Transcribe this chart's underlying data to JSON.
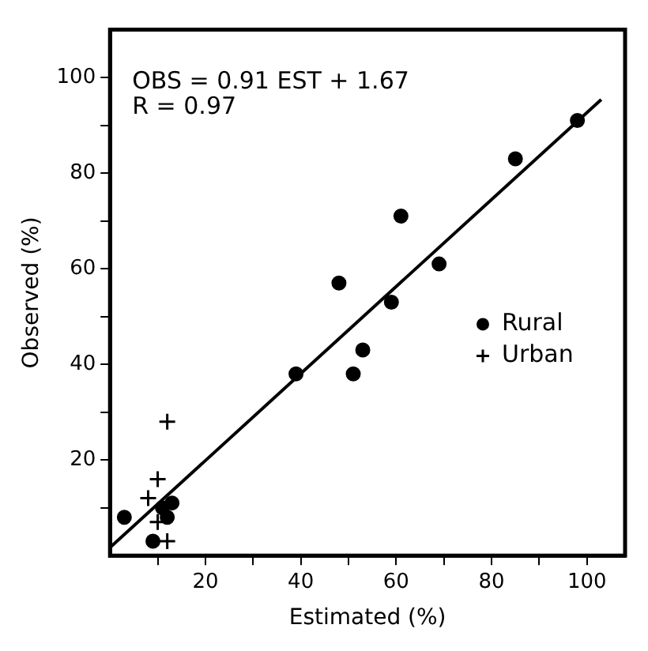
{
  "chart_data": {
    "type": "scatter",
    "xlabel": "Estimated (%)",
    "ylabel": "Observed (%)",
    "annotations": [
      "OBS = 0.91 EST + 1.67",
      "R = 0.97"
    ],
    "xlim": [
      0,
      108
    ],
    "ylim": [
      0,
      110
    ],
    "xticks": [
      {
        "value": 10,
        "label": null
      },
      20,
      {
        "value": 30,
        "label": null
      },
      40,
      {
        "value": 50,
        "label": null
      },
      60,
      {
        "value": 70,
        "label": null
      },
      80,
      {
        "value": 90,
        "label": null
      },
      100
    ],
    "yticks": [
      {
        "value": 10,
        "label": null
      },
      20,
      {
        "value": 30,
        "label": null
      },
      40,
      {
        "value": 50,
        "label": null
      },
      60,
      {
        "value": 70,
        "label": null
      },
      80,
      {
        "value": 90,
        "label": null
      },
      100
    ],
    "grid": false,
    "legend": "right",
    "series": [
      {
        "name": "Rural",
        "color": "#000000",
        "marker": "circle",
        "x": [
          98,
          85,
          61,
          69,
          48,
          59,
          39,
          53,
          51,
          3,
          9,
          11,
          13,
          12
        ],
        "values": [
          91,
          83,
          71,
          61,
          57,
          53,
          38,
          43,
          38,
          8,
          3,
          10,
          11,
          8
        ]
      },
      {
        "name": "Urban",
        "color": "#000000",
        "marker": "cross",
        "x": [
          12,
          10,
          8,
          10,
          12
        ],
        "values": [
          28,
          16,
          12,
          7,
          3
        ]
      },
      {
        "type": "line",
        "color": "#000000",
        "x": [
          0,
          103
        ],
        "values": [
          1.67,
          95.4
        ]
      }
    ]
  }
}
